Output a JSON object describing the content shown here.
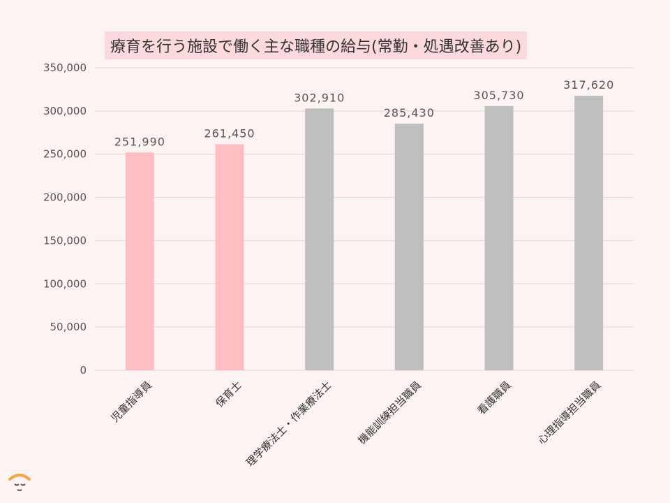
{
  "chart_data": {
    "type": "bar",
    "title": "療育を行う施設で働く主な職種の給与(常勤・処遇改善あり)",
    "categories": [
      "児童指導員",
      "保育士",
      "理学療法士・作業療法士",
      "機能訓練担当職員",
      "看護職員",
      "心理指導担当職員"
    ],
    "values": [
      251990,
      261450,
      302910,
      285430,
      305730,
      317620
    ],
    "value_labels": [
      "251,990",
      "261,450",
      "302,910",
      "285,430",
      "305,730",
      "317,620"
    ],
    "bar_colors": [
      "#ffbfc2",
      "#ffbfc2",
      "#bfbfbf",
      "#bfbfbf",
      "#bfbfbf",
      "#bfbfbf"
    ],
    "ylim": [
      0,
      350000
    ],
    "yticks": [
      0,
      50000,
      100000,
      150000,
      200000,
      250000,
      300000,
      350000
    ],
    "ytick_labels": [
      "0",
      "50,000",
      "100,000",
      "150,000",
      "200,000",
      "250,000",
      "300,000",
      "350,000"
    ],
    "grid": true,
    "xlabel": "",
    "ylabel": ""
  },
  "logo": {
    "icon": "face-logo-icon"
  }
}
